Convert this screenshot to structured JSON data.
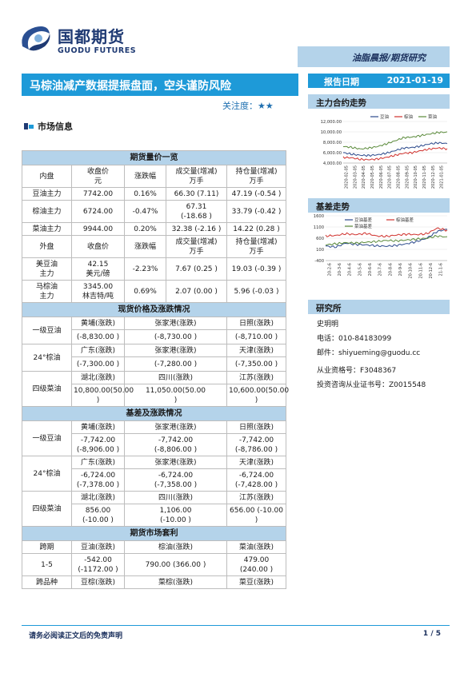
{
  "header": {
    "logo_cn": "国都期货",
    "logo_en": "GUODU FUTURES",
    "banner": "油脂晨报/期货研究",
    "title": "马棕油减产数据提振盘面，空头谨防风险",
    "date_label": "报告日期",
    "date_value": "2021-01-19",
    "attention_label": "关注度：",
    "attention_stars": "★★"
  },
  "market_section_label": "市场信息",
  "futures": {
    "section_title": "期货量价一览",
    "domestic_headers": [
      "内盘",
      "收盘价\n元",
      "涨跌幅",
      "成交量(增减)\n万手",
      "持仓量(增减)\n万手"
    ],
    "domestic_rows": [
      {
        "name": "豆油主力",
        "close": "7742.00",
        "chg": "0.16%",
        "vol": "66.30 (7.11)",
        "oi": "47.19 (-0.54 )"
      },
      {
        "name": "棕油主力",
        "close": "6724.00",
        "chg": "-0.47%",
        "vol": "67.31\n(-18.68 )",
        "oi": "33.79 (-0.42 )"
      },
      {
        "name": "菜油主力",
        "close": "9944.00",
        "chg": "0.20%",
        "vol": "32.38 (-2.16 )",
        "oi": "14.22 (0.28 )"
      }
    ],
    "foreign_headers": [
      "外盘",
      "收盘价",
      "涨跌幅",
      "成交量(增减)\n万手",
      "持仓量(增减)\n万手"
    ],
    "foreign_rows": [
      {
        "name": "美豆油\n主力",
        "close": "42.15\n美元/磅",
        "chg": "-2.23%",
        "vol": "7.67 (0.25 )",
        "oi": "19.03 (-0.39 )"
      },
      {
        "name": "马棕油\n主力",
        "close": "3345.00\n林吉特/吨",
        "chg": "0.69%",
        "vol": "2.07 (0.00 )",
        "oi": "5.96 (-0.03 )"
      }
    ]
  },
  "spot": {
    "section_title": "现货价格及涨跌情况",
    "groups": [
      {
        "name": "一级豆油",
        "regions": [
          "黄埔(涨跌)",
          "张家港(涨跌)",
          "日照(涨跌)"
        ],
        "values": [
          "(-8,830.00 )",
          "(-8,730.00 )",
          "(-8,710.00 )"
        ]
      },
      {
        "name": "24°棕油",
        "regions": [
          "广东(涨跌)",
          "张家港(涨跌)",
          "天津(涨跌)"
        ],
        "values": [
          "(-7,300.00 )",
          "(-7,280.00 )",
          "(-7,350.00 )"
        ]
      },
      {
        "name": "四级菜油",
        "regions": [
          "湖北(涨跌)",
          "四川(涨跌)",
          "江苏(涨跌)"
        ],
        "values": [
          "10,800.00(50.00 )",
          "11,050.00(50.00\n)",
          "10,600.00(50.00 )"
        ]
      }
    ]
  },
  "basis": {
    "section_title": "基差及涨跌情况",
    "groups": [
      {
        "name": "一级豆油",
        "regions": [
          "黄埔(涨跌)",
          "张家港(涨跌)",
          "日照(涨跌)"
        ],
        "values": [
          "-7,742.00\n(-8,906.00 )",
          "-7,742.00\n(-8,806.00 )",
          "-7,742.00\n(-8,786.00 )"
        ]
      },
      {
        "name": "24°棕油",
        "regions": [
          "广东(涨跌)",
          "张家港(涨跌)",
          "天津(涨跌)"
        ],
        "values": [
          "-6,724.00\n(-7,378.00 )",
          "-6,724.00\n(-7,358.00 )",
          "-6,724.00\n(-7,428.00 )"
        ]
      },
      {
        "name": "四级菜油",
        "regions": [
          "湖北(涨跌)",
          "四川(涨跌)",
          "江苏(涨跌)"
        ],
        "values": [
          "856.00 (-10.00 )",
          "1,106.00\n(-10.00 )",
          "656.00 (-10.00 )"
        ]
      }
    ]
  },
  "arb": {
    "section_title": "期货市场套利",
    "headers": [
      "跨期",
      "豆油(涨跌)",
      "棕油(涨跌)",
      "菜油(涨跌)"
    ],
    "row": [
      "1-5",
      "-542.00\n(-1172.00 )",
      "790.00 (366.00 )",
      "479.00 (240.00 )"
    ],
    "headers2": [
      "跨品种",
      "豆棕(涨跌)",
      "菜棕(涨跌)",
      "菜豆(涨跌)"
    ]
  },
  "right": {
    "main_trend_title": "主力合约走势",
    "basis_trend_title": "基差走势",
    "research_title": "研究所",
    "researcher": "史玥明",
    "phone": "电话：010-84183099",
    "email": "邮件：shiyueming@guodu.cc",
    "cert": "从业资格号：F3048367",
    "invest_cert": "投资咨询从业证书号：Z0015548"
  },
  "chart_data": [
    {
      "type": "line",
      "title": "",
      "legend": [
        "豆油",
        "棕油",
        "菜油"
      ],
      "colors": [
        "#2c4a8c",
        "#d0312d",
        "#5a8a3a"
      ],
      "ylim": [
        4000,
        12000
      ],
      "yticks": [
        "12,000.00",
        "10,000.00",
        "8,000.00",
        "6,000.00",
        "4,000.00"
      ],
      "xticks": [
        "2020-02-05",
        "2020-03-05",
        "2020-04-05",
        "2020-05-05",
        "2020-06-05",
        "2020-07-05",
        "2020-08-05",
        "2020-09-05",
        "2020-10-05",
        "2020-11-05",
        "2020-12-05",
        "2021-01-05"
      ],
      "series": [
        {
          "name": "豆油",
          "values": [
            6000,
            5700,
            5500,
            5450,
            5600,
            5900,
            6400,
            6900,
            7000,
            7300,
            7700,
            7900,
            7742
          ]
        },
        {
          "name": "棕油",
          "values": [
            5100,
            5000,
            4700,
            4650,
            4800,
            5100,
            5500,
            5900,
            6000,
            6400,
            6700,
            6900,
            6724
          ]
        },
        {
          "name": "菜油",
          "values": [
            7200,
            7000,
            6700,
            6900,
            7200,
            7700,
            8300,
            8900,
            9000,
            9300,
            9600,
            9900,
            9944
          ]
        }
      ]
    },
    {
      "type": "line",
      "title": "",
      "legend": [
        "豆油基差",
        "棕油基差",
        "菜油基差"
      ],
      "colors": [
        "#2c4a8c",
        "#d0312d",
        "#5a8a3a"
      ],
      "ylim": [
        -400,
        1600
      ],
      "yticks": [
        "1600",
        "1100",
        "600",
        "100",
        "-400"
      ],
      "xticks": [
        "20-2-6",
        "20-3-6",
        "20-4-6",
        "20-5-6",
        "20-6-6",
        "20-7-6",
        "20-8-6",
        "20-9-6",
        "20-10-6",
        "20-11-6",
        "20-12-6",
        "21-1-6"
      ],
      "series": [
        {
          "name": "豆油基差",
          "values": [
            250,
            200,
            380,
            320,
            300,
            260,
            240,
            280,
            350,
            450,
            600,
            900,
            1000
          ]
        },
        {
          "name": "棕油基差",
          "values": [
            700,
            720,
            800,
            760,
            820,
            700,
            680,
            740,
            780,
            760,
            800,
            1050,
            950
          ]
        },
        {
          "name": "菜油基差",
          "values": [
            300,
            350,
            400,
            380,
            420,
            450,
            500,
            480,
            520,
            560,
            600,
            700,
            650
          ]
        }
      ]
    }
  ],
  "footer": {
    "disclaimer": "请务必阅读正文后的免责声明",
    "page": "1 / 5"
  }
}
